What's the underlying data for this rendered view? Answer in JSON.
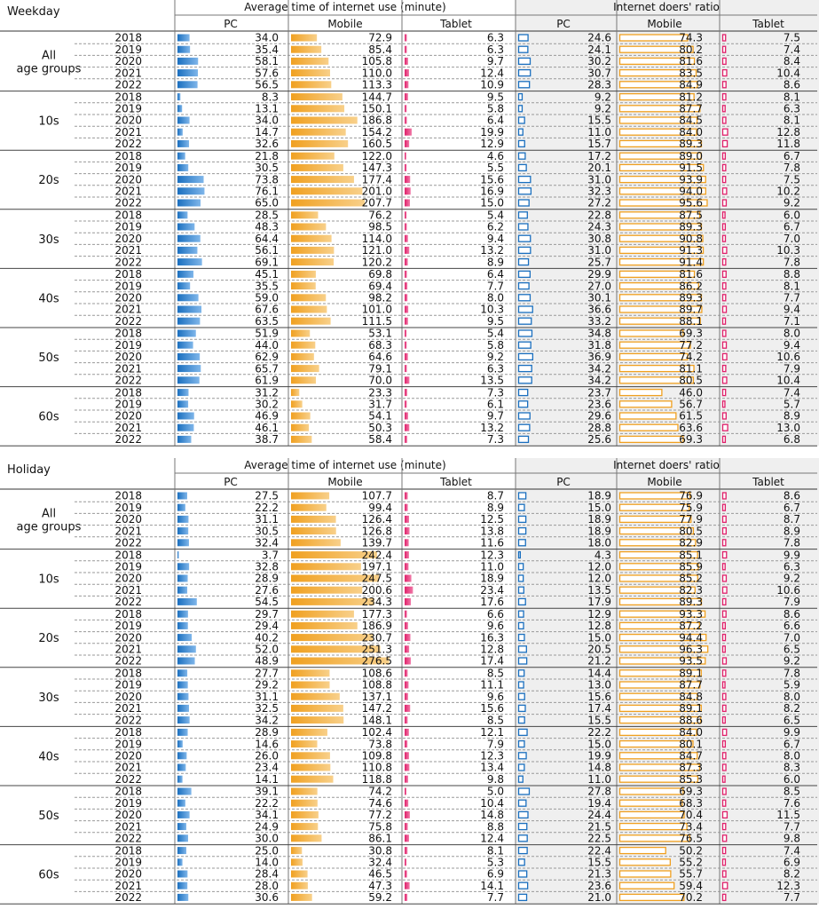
{
  "chart_data": {
    "type": "table",
    "group_header_time": "Average time of internet use (minute)",
    "group_header_ratio": "Internet doers' ratio",
    "devices": [
      "PC",
      "Mobile",
      "Tablet"
    ],
    "age_groups": [
      "All\nage groups",
      "10s",
      "20s",
      "30s",
      "40s",
      "50s",
      "60s"
    ],
    "years": [
      "2018",
      "2019",
      "2020",
      "2021",
      "2022"
    ],
    "colors": {
      "pc": "#1a6fbf",
      "mobile": "#f0a020",
      "tablet": "#e0206a",
      "ratio_panel": "#efefef"
    },
    "sections": [
      {
        "title": "Weekday",
        "groups": [
          {
            "time": [
              [
                34.0,
                72.9,
                6.3
              ],
              [
                35.4,
                85.4,
                6.3
              ],
              [
                58.1,
                105.8,
                9.7
              ],
              [
                57.6,
                110.0,
                12.4
              ],
              [
                56.5,
                113.3,
                10.9
              ]
            ],
            "ratio": [
              [
                24.6,
                74.3,
                7.5
              ],
              [
                24.1,
                80.2,
                7.4
              ],
              [
                30.2,
                81.6,
                8.4
              ],
              [
                30.7,
                83.5,
                10.4
              ],
              [
                28.3,
                84.9,
                8.6
              ]
            ]
          },
          {
            "time": [
              [
                8.3,
                144.7,
                9.5
              ],
              [
                13.1,
                150.1,
                5.8
              ],
              [
                34.0,
                186.8,
                6.4
              ],
              [
                14.7,
                154.2,
                19.9
              ],
              [
                32.6,
                160.5,
                12.9
              ]
            ],
            "ratio": [
              [
                9.2,
                81.2,
                8.1
              ],
              [
                9.2,
                87.7,
                6.3
              ],
              [
                15.5,
                84.5,
                8.1
              ],
              [
                11.0,
                84.0,
                12.8
              ],
              [
                15.7,
                89.3,
                11.8
              ]
            ]
          },
          {
            "time": [
              [
                21.8,
                122.0,
                4.6
              ],
              [
                30.5,
                147.3,
                5.5
              ],
              [
                73.8,
                177.4,
                15.6
              ],
              [
                76.1,
                201.0,
                16.9
              ],
              [
                65.0,
                207.7,
                15.0
              ]
            ],
            "ratio": [
              [
                17.2,
                89.0,
                6.7
              ],
              [
                20.1,
                91.5,
                7.8
              ],
              [
                31.0,
                93.9,
                7.5
              ],
              [
                32.3,
                94.0,
                10.2
              ],
              [
                27.2,
                95.6,
                9.2
              ]
            ]
          },
          {
            "time": [
              [
                28.5,
                76.2,
                5.4
              ],
              [
                48.3,
                98.5,
                6.2
              ],
              [
                64.4,
                114.0,
                9.4
              ],
              [
                56.1,
                121.0,
                13.2
              ],
              [
                69.1,
                120.2,
                8.9
              ]
            ],
            "ratio": [
              [
                22.8,
                87.5,
                6.0
              ],
              [
                24.3,
                89.3,
                6.7
              ],
              [
                30.8,
                90.8,
                7.0
              ],
              [
                31.0,
                91.3,
                10.3
              ],
              [
                25.7,
                91.4,
                7.8
              ]
            ]
          },
          {
            "time": [
              [
                45.1,
                69.8,
                6.4
              ],
              [
                35.5,
                69.4,
                7.7
              ],
              [
                59.0,
                98.2,
                8.0
              ],
              [
                67.6,
                101.0,
                10.3
              ],
              [
                63.5,
                111.5,
                9.5
              ]
            ],
            "ratio": [
              [
                29.9,
                81.6,
                8.8
              ],
              [
                27.0,
                86.2,
                8.1
              ],
              [
                30.1,
                89.3,
                7.7
              ],
              [
                36.6,
                89.7,
                9.4
              ],
              [
                33.2,
                88.1,
                7.1
              ]
            ]
          },
          {
            "time": [
              [
                51.9,
                53.1,
                5.4
              ],
              [
                44.0,
                68.3,
                5.8
              ],
              [
                62.9,
                64.6,
                9.2
              ],
              [
                65.7,
                79.1,
                6.3
              ],
              [
                61.9,
                70.0,
                13.5
              ]
            ],
            "ratio": [
              [
                34.8,
                69.3,
                8.0
              ],
              [
                31.8,
                77.2,
                9.4
              ],
              [
                36.9,
                74.2,
                10.6
              ],
              [
                34.2,
                81.1,
                7.9
              ],
              [
                34.2,
                80.5,
                10.4
              ]
            ]
          },
          {
            "time": [
              [
                31.2,
                23.3,
                7.3
              ],
              [
                30.2,
                31.7,
                6.1
              ],
              [
                46.9,
                54.1,
                9.7
              ],
              [
                46.1,
                50.3,
                13.2
              ],
              [
                38.7,
                58.4,
                7.3
              ]
            ],
            "ratio": [
              [
                23.7,
                46.0,
                7.4
              ],
              [
                23.6,
                56.7,
                5.7
              ],
              [
                29.6,
                61.5,
                8.9
              ],
              [
                28.8,
                63.6,
                13.0
              ],
              [
                25.6,
                69.3,
                6.8
              ]
            ]
          }
        ]
      },
      {
        "title": "Holiday",
        "groups": [
          {
            "time": [
              [
                27.5,
                107.7,
                8.7
              ],
              [
                22.2,
                99.4,
                8.9
              ],
              [
                31.1,
                126.4,
                12.5
              ],
              [
                30.5,
                126.8,
                13.8
              ],
              [
                32.4,
                139.7,
                11.6
              ]
            ],
            "ratio": [
              [
                18.9,
                76.9,
                8.6
              ],
              [
                15.0,
                75.9,
                6.7
              ],
              [
                18.9,
                77.9,
                8.7
              ],
              [
                18.9,
                80.5,
                8.9
              ],
              [
                18.0,
                82.9,
                7.8
              ]
            ]
          },
          {
            "time": [
              [
                3.7,
                242.4,
                12.3
              ],
              [
                32.8,
                197.1,
                11.0
              ],
              [
                28.9,
                247.5,
                18.9
              ],
              [
                27.6,
                200.6,
                23.4
              ],
              [
                54.5,
                234.3,
                17.6
              ]
            ],
            "ratio": [
              [
                4.3,
                85.1,
                9.9
              ],
              [
                12.0,
                85.9,
                6.3
              ],
              [
                12.0,
                85.2,
                9.2
              ],
              [
                13.5,
                82.3,
                10.6
              ],
              [
                17.9,
                89.3,
                7.9
              ]
            ]
          },
          {
            "time": [
              [
                29.7,
                177.3,
                6.6
              ],
              [
                29.4,
                186.9,
                9.6
              ],
              [
                40.2,
                230.7,
                16.3
              ],
              [
                52.0,
                251.3,
                12.8
              ],
              [
                48.9,
                276.5,
                17.4
              ]
            ],
            "ratio": [
              [
                12.9,
                93.3,
                8.6
              ],
              [
                12.8,
                87.2,
                6.6
              ],
              [
                15.0,
                94.4,
                7.0
              ],
              [
                20.5,
                96.3,
                6.5
              ],
              [
                21.2,
                93.5,
                9.2
              ]
            ]
          },
          {
            "time": [
              [
                27.7,
                108.6,
                8.5
              ],
              [
                29.2,
                108.8,
                11.1
              ],
              [
                31.1,
                137.1,
                9.6
              ],
              [
                32.5,
                147.2,
                15.6
              ],
              [
                34.2,
                148.1,
                8.5
              ]
            ],
            "ratio": [
              [
                14.4,
                89.1,
                7.8
              ],
              [
                13.0,
                87.7,
                5.9
              ],
              [
                15.6,
                84.8,
                8.0
              ],
              [
                17.4,
                89.1,
                8.2
              ],
              [
                15.5,
                88.6,
                6.5
              ]
            ]
          },
          {
            "time": [
              [
                28.9,
                102.4,
                12.1
              ],
              [
                14.6,
                73.8,
                7.9
              ],
              [
                26.0,
                109.8,
                12.3
              ],
              [
                23.4,
                110.8,
                13.4
              ],
              [
                14.1,
                118.8,
                9.8
              ]
            ],
            "ratio": [
              [
                22.2,
                84.0,
                9.9
              ],
              [
                15.0,
                80.1,
                6.7
              ],
              [
                19.9,
                84.7,
                8.0
              ],
              [
                14.8,
                87.3,
                8.3
              ],
              [
                11.0,
                85.3,
                6.0
              ]
            ]
          },
          {
            "time": [
              [
                39.1,
                74.2,
                5.0
              ],
              [
                22.2,
                74.6,
                10.4
              ],
              [
                34.1,
                77.2,
                14.8
              ],
              [
                24.9,
                75.8,
                8.8
              ],
              [
                30.0,
                86.1,
                12.4
              ]
            ],
            "ratio": [
              [
                27.8,
                69.3,
                8.5
              ],
              [
                19.4,
                68.3,
                7.6
              ],
              [
                24.4,
                70.4,
                11.5
              ],
              [
                21.5,
                73.4,
                7.7
              ],
              [
                22.5,
                76.5,
                9.8
              ]
            ]
          },
          {
            "time": [
              [
                25.0,
                30.8,
                8.1
              ],
              [
                14.0,
                32.4,
                5.3
              ],
              [
                28.4,
                46.5,
                6.9
              ],
              [
                28.0,
                47.3,
                14.1
              ],
              [
                30.6,
                59.2,
                7.7
              ]
            ],
            "ratio": [
              [
                22.4,
                50.2,
                7.4
              ],
              [
                15.5,
                55.2,
                6.9
              ],
              [
                21.3,
                55.7,
                8.2
              ],
              [
                23.6,
                59.4,
                12.3
              ],
              [
                21.0,
                70.2,
                7.7
              ]
            ]
          }
        ]
      }
    ]
  }
}
